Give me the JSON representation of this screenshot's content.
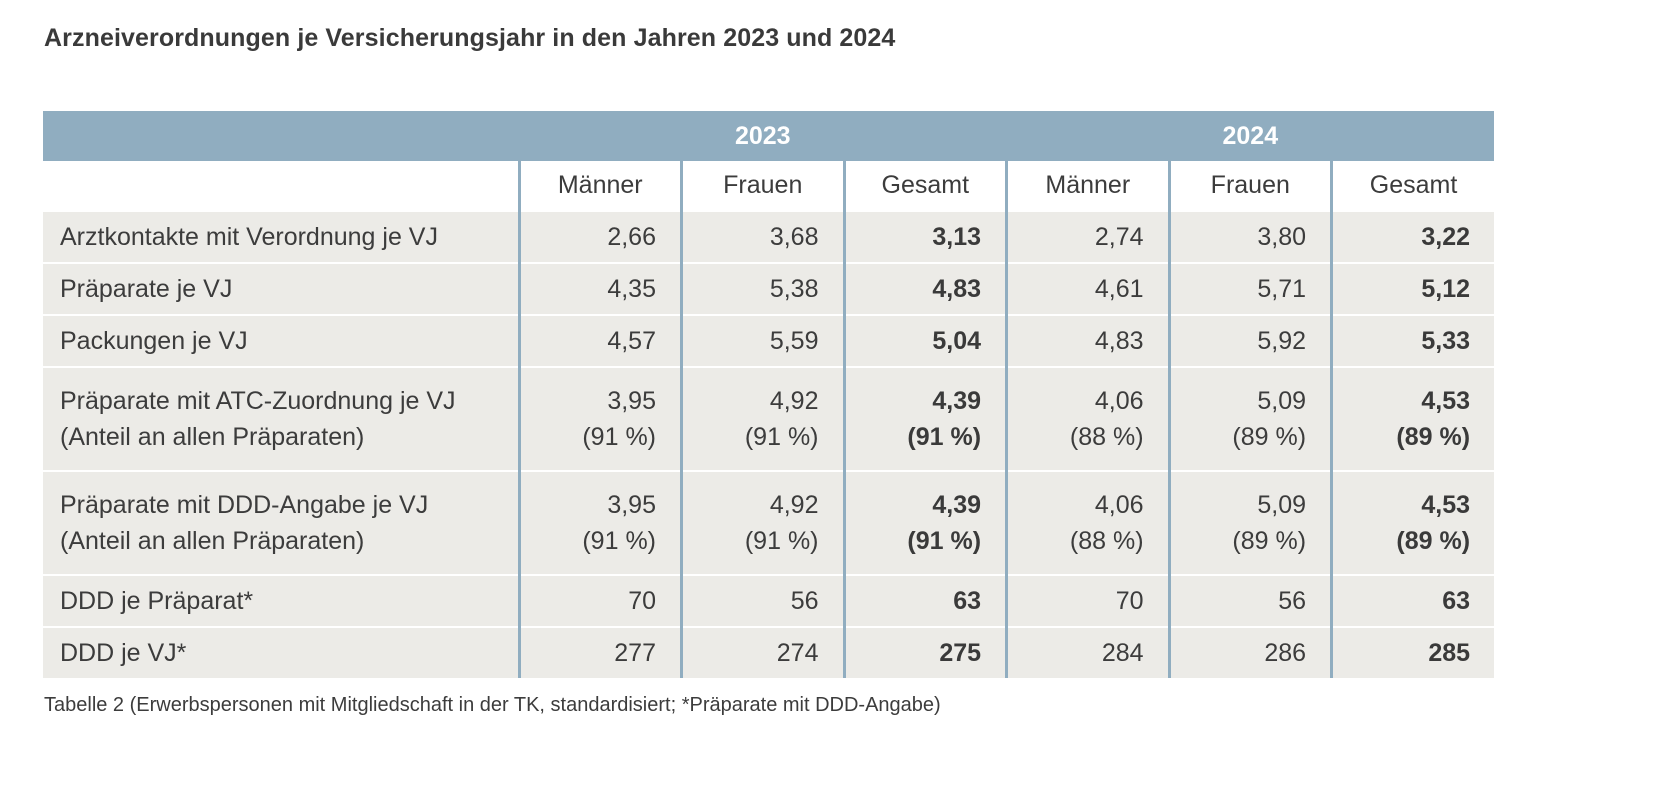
{
  "title": "Arzneiverordnungen je Versicherungsjahr in den Jahren 2023 und 2024",
  "years": [
    "2023",
    "2024"
  ],
  "subheaders": [
    "Männer",
    "Frauen",
    "Gesamt",
    "Männer",
    "Frauen",
    "Gesamt"
  ],
  "rows": [
    {
      "label": [
        "Arztkontakte mit Verordnung je VJ"
      ],
      "values": [
        [
          "2,66"
        ],
        [
          "3,68"
        ],
        [
          "3,13"
        ],
        [
          "2,74"
        ],
        [
          "3,80"
        ],
        [
          "3,22"
        ]
      ]
    },
    {
      "label": [
        "Präparate je VJ"
      ],
      "values": [
        [
          "4,35"
        ],
        [
          "5,38"
        ],
        [
          "4,83"
        ],
        [
          "4,61"
        ],
        [
          "5,71"
        ],
        [
          "5,12"
        ]
      ]
    },
    {
      "label": [
        "Packungen je VJ"
      ],
      "values": [
        [
          "4,57"
        ],
        [
          "5,59"
        ],
        [
          "5,04"
        ],
        [
          "4,83"
        ],
        [
          "5,92"
        ],
        [
          "5,33"
        ]
      ]
    },
    {
      "label": [
        "Präparate mit ATC-Zuordnung je VJ",
        "(Anteil an allen Präparaten)"
      ],
      "values": [
        [
          "3,95",
          "(91 %)"
        ],
        [
          "4,92",
          "(91 %)"
        ],
        [
          "4,39",
          "(91 %)"
        ],
        [
          "4,06",
          "(88 %)"
        ],
        [
          "5,09",
          "(89 %)"
        ],
        [
          "4,53",
          "(89 %)"
        ]
      ]
    },
    {
      "label": [
        "Präparate mit DDD-Angabe je VJ",
        "(Anteil an allen Präparaten)"
      ],
      "values": [
        [
          "3,95",
          "(91 %)"
        ],
        [
          "4,92",
          "(91 %)"
        ],
        [
          "4,39",
          "(91 %)"
        ],
        [
          "4,06",
          "(88 %)"
        ],
        [
          "5,09",
          "(89 %)"
        ],
        [
          "4,53",
          "(89 %)"
        ]
      ]
    },
    {
      "label": [
        "DDD je Präparat*"
      ],
      "values": [
        [
          "70"
        ],
        [
          "56"
        ],
        [
          "63"
        ],
        [
          "70"
        ],
        [
          "56"
        ],
        [
          "63"
        ]
      ]
    },
    {
      "label": [
        "DDD je VJ*"
      ],
      "values": [
        [
          "277"
        ],
        [
          "274"
        ],
        [
          "275"
        ],
        [
          "284"
        ],
        [
          "286"
        ],
        [
          "285"
        ]
      ]
    }
  ],
  "caption": "Tabelle 2 (Erwerbspersonen mit Mitgliedschaft in der TK, standardisiert; *Präparate mit DDD-Angabe)",
  "colors": {
    "header_bg": "#90adc0",
    "row_bg": "#ecebe7",
    "text": "#3c3c3c"
  }
}
